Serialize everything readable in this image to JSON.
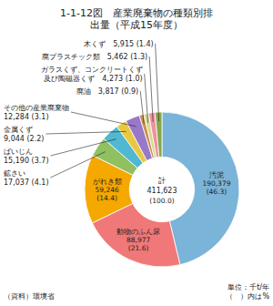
{
  "chart_data": {
    "type": "pie",
    "title": "1-1-12図　産業廃棄物の種類別排\n出量（平成15年度）",
    "categories": [
      "汚泥\n190,379\n(46.3)",
      "動物のふん尿\n88,977\n(21.6)",
      "がれき類\n59,246\n(14.4)",
      "鉱さい\n17,037 (4.1)",
      "ばいじん\n15,190 (3.7)",
      "金属くず\n9,044 (2.2)",
      "その他の産業廃棄物\n12,284 (3.1)",
      "廃油　3,817 (0.9)",
      "ガラスくず、コンクリートくず\n及び陶磁器くず　4,273 (1.0)",
      "廃プラスチック類　5,462 (1.3)",
      "木くず　5,915 (1.4)"
    ],
    "values": [
      190379,
      88977,
      59246,
      17037,
      15190,
      9044,
      12284,
      3817,
      4273,
      5462,
      5915
    ],
    "colors": [
      "#7ab4d8",
      "#f07878",
      "#f5a800",
      "#90c060",
      "#50b8d0",
      "#e8c840",
      "#9878c8",
      "#c89050",
      "#d8d890",
      "#f090a0",
      "#88a848"
    ],
    "annotations": [
      "計",
      "411,623",
      "(100.0)"
    ],
    "source": "（資料）環境省",
    "unit": "単位：千t/年\n（　）内は%"
  }
}
